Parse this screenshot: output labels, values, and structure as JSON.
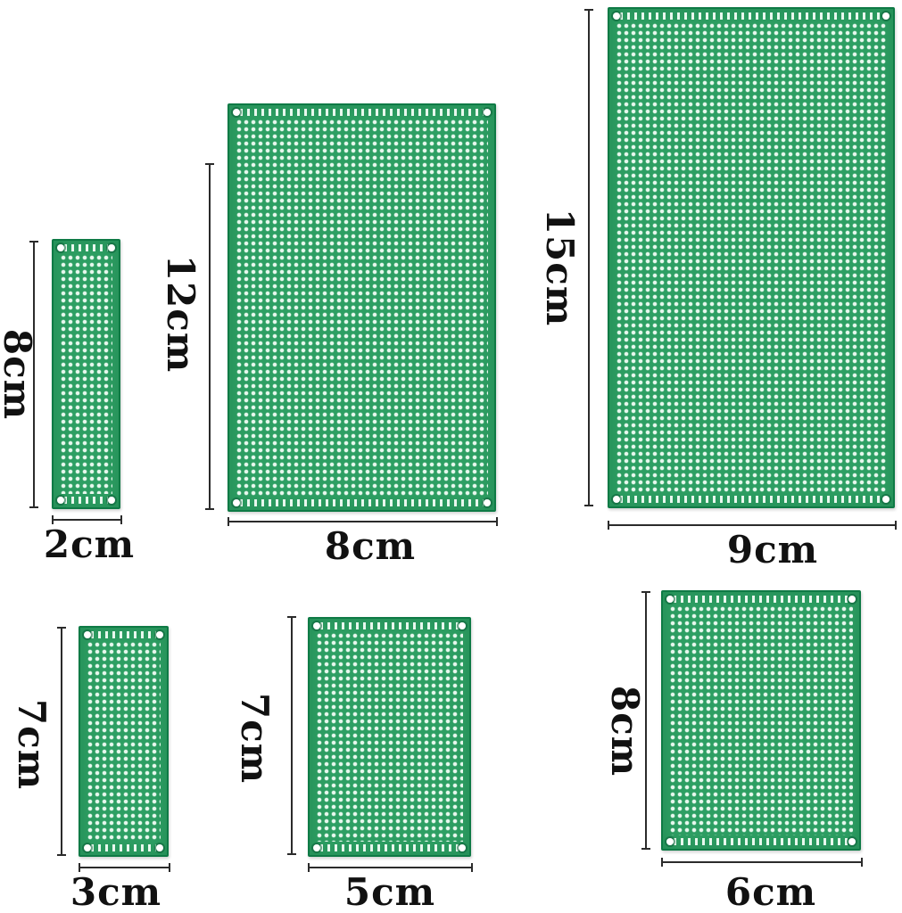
{
  "colors": {
    "background": "#ffffff",
    "pcb_fill": "#2d9f63",
    "pcb_border": "#0e7a45",
    "hole_dot": "#e8f8ee",
    "dimension_line": "#2b2b2b",
    "label_text": "#111111"
  },
  "boards": [
    {
      "name": "pcb-board-2x8cm",
      "width_label": "2cm",
      "height_label": "8cm"
    },
    {
      "name": "pcb-board-8x12cm",
      "width_label": "8cm",
      "height_label": "12cm"
    },
    {
      "name": "pcb-board-9x15cm",
      "width_label": "9cm",
      "height_label": "15cm"
    },
    {
      "name": "pcb-board-3x7cm",
      "width_label": "3cm",
      "height_label": "7cm"
    },
    {
      "name": "pcb-board-5x7cm",
      "width_label": "5cm",
      "height_label": "7cm"
    },
    {
      "name": "pcb-board-6x8cm",
      "width_label": "6cm",
      "height_label": "8cm"
    }
  ]
}
